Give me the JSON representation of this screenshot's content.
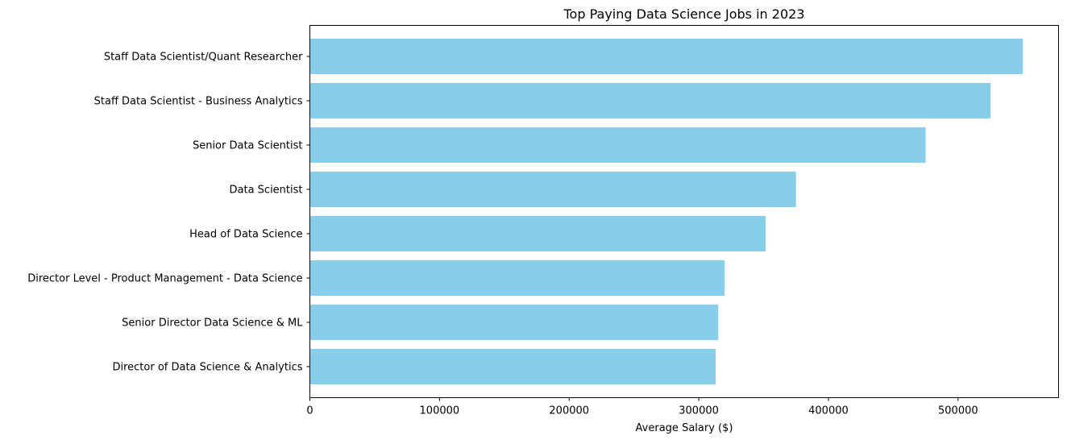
{
  "chart_data": {
    "type": "bar",
    "orientation": "horizontal",
    "title": "Top Paying Data Science Jobs in 2023",
    "xlabel": "Average Salary ($)",
    "ylabel": "",
    "categories": [
      "Staff Data Scientist/Quant Researcher",
      "Staff Data Scientist - Business Analytics",
      "Senior Data Scientist",
      "Data Scientist",
      "Head of Data Science",
      "Director Level - Product Management - Data Science",
      "Senior Director Data Science & ML",
      "Director of Data Science & Analytics"
    ],
    "values": [
      550000,
      525000,
      475000,
      375000,
      351500,
      320000,
      315000,
      313000
    ],
    "xlim": [
      0,
      577500
    ],
    "xticks": [
      0,
      100000,
      200000,
      300000,
      400000,
      500000
    ],
    "grid": false,
    "legend": "none",
    "bar_color": "#87ceeb"
  }
}
